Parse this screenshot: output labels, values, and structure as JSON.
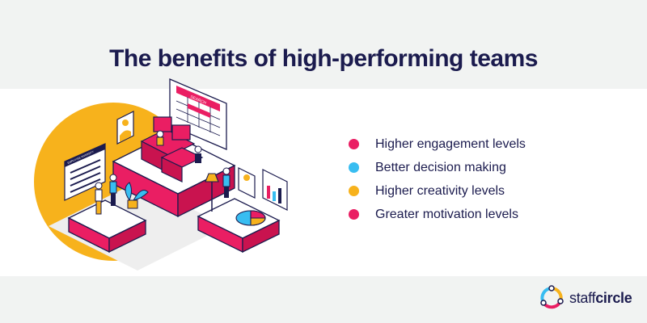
{
  "page": {
    "title": "The benefits of high-performing teams"
  },
  "benefits": [
    {
      "label": "Higher engagement levels",
      "color": "#ea1e63"
    },
    {
      "label": "Better decision making",
      "color": "#38bdf1"
    },
    {
      "label": "Higher creativity levels",
      "color": "#f7b21c"
    },
    {
      "label": "Greater motivation levels",
      "color": "#ea1e63"
    }
  ],
  "illustration": {
    "board_title": "SEARCH",
    "poster_title": "EMPLOYEE DIVERSITY"
  },
  "brand": {
    "name_part1": "staff",
    "name_part2": "circle"
  },
  "colors": {
    "navy": "#1b1b4e",
    "pink": "#ea1e63",
    "yellow": "#f7b21c",
    "blue": "#38bdf1",
    "background": "#f1f3f2"
  }
}
